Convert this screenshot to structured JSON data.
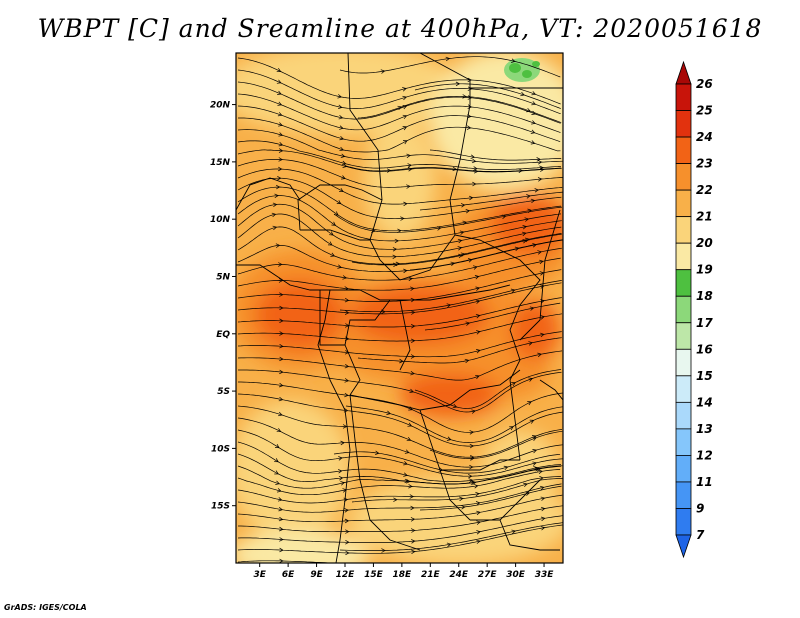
{
  "title": "WBPT [C] and Sreamline at 400hPa, VT: 2020051618",
  "credit": "GrADS: IGES/COLA",
  "map": {
    "lat_labels": [
      {
        "label": "20N",
        "lat": 20
      },
      {
        "label": "15N",
        "lat": 15
      },
      {
        "label": "10N",
        "lat": 10
      },
      {
        "label": "5N",
        "lat": 5
      },
      {
        "label": "EQ",
        "lat": 0
      },
      {
        "label": "5S",
        "lat": -5
      },
      {
        "label": "10S",
        "lat": -10
      },
      {
        "label": "15S",
        "lat": -15
      }
    ],
    "lon_labels": [
      {
        "label": "3E",
        "lon": 3
      },
      {
        "label": "6E",
        "lon": 6
      },
      {
        "label": "9E",
        "lon": 9
      },
      {
        "label": "12E",
        "lon": 12
      },
      {
        "label": "15E",
        "lon": 15
      },
      {
        "label": "18E",
        "lon": 18
      },
      {
        "label": "21E",
        "lon": 21
      },
      {
        "label": "24E",
        "lon": 24
      },
      {
        "label": "27E",
        "lon": 27
      },
      {
        "label": "30E",
        "lon": 30
      },
      {
        "label": "33E",
        "lon": 33
      }
    ],
    "lat_range": [
      -20,
      24.5
    ],
    "lon_range": [
      0.5,
      35
    ]
  },
  "colorbar": {
    "levels": [
      "7",
      "9",
      "11",
      "12",
      "13",
      "14",
      "15",
      "16",
      "17",
      "18",
      "19",
      "20",
      "21",
      "22",
      "23",
      "24",
      "25",
      "26"
    ],
    "colors": [
      "#1e64e6",
      "#2f7cf0",
      "#4595f5",
      "#62aef9",
      "#85c6fb",
      "#aad9fb",
      "#ccebf9",
      "#e8f7ef",
      "#bde7a8",
      "#8cd87a",
      "#4ec040",
      "#fae9a4",
      "#fad47a",
      "#f8b049",
      "#f6902c",
      "#f26316",
      "#e2320e",
      "#c8140a",
      "#a80806"
    ]
  }
}
